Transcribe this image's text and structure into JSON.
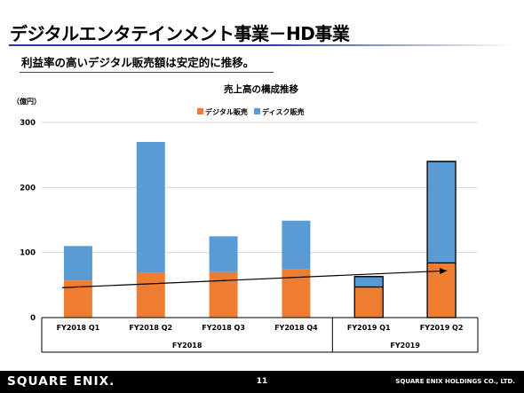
{
  "slide": {
    "title": "デジタルエンタテインメント事業－HD事業",
    "subtitle": "利益率の高いデジタル販売額は安定的に推移。",
    "page_number": "11",
    "logo_text": "SQUARE ENIX.",
    "company": "SQUARE ENIX HOLDINGS CO., LTD."
  },
  "colors": {
    "digital": "#ed7d31",
    "disc": "#5b9bd5",
    "title_rule": "#1f3f9a",
    "footer": "#000000"
  },
  "chart_data": {
    "type": "bar",
    "stacked": true,
    "title": "売上高の構成推移",
    "unit_label": "（億円）",
    "categories": [
      "FY2018 Q1",
      "FY2018 Q2",
      "FY2018 Q3",
      "FY2018 Q4",
      "FY2019 Q1",
      "FY2019 Q2"
    ],
    "groups": [
      {
        "label": "FY2018",
        "categories": [
          "FY2018 Q1",
          "FY2018 Q2",
          "FY2018 Q3",
          "FY2018 Q4"
        ]
      },
      {
        "label": "FY2019",
        "categories": [
          "FY2019 Q1",
          "FY2019 Q2"
        ]
      }
    ],
    "series": [
      {
        "name": "デジタル販売",
        "color": "#ed7d31",
        "values": [
          57,
          69,
          70,
          74,
          47,
          84
        ]
      },
      {
        "name": "ディスク販売",
        "color": "#5b9bd5",
        "values": [
          53,
          201,
          55,
          75,
          16,
          156
        ]
      }
    ],
    "outlined_categories": [
      "FY2019 Q1",
      "FY2019 Q2"
    ],
    "trend_arrow": {
      "from_category": "FY2018 Q1",
      "from_value": 46,
      "to_category": "FY2019 Q2",
      "to_value": 72
    },
    "ylim": [
      0,
      300
    ],
    "yticks": [
      0,
      100,
      200,
      300
    ],
    "grid": true,
    "legend_position": "top-center"
  }
}
